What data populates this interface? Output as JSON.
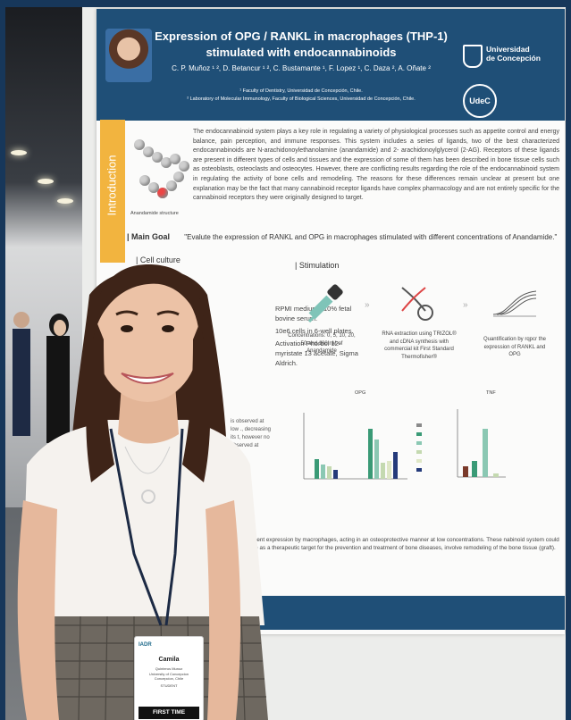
{
  "poster": {
    "title_line1": "Expression of OPG / RANKL in macrophages (THP-1)",
    "title_line2": "stimulated with endocannabinoids",
    "authors": "C. P. Muñoz ¹ ², D. Betancur ¹ ², C. Bustamante ¹, F. Lopez ¹, C. Daza ², A. Oñate ²",
    "affiliation1": "¹ Faculty of Dentistry, Universidad de Concepción, Chile.",
    "affiliation2": "² Laboratory of Molecular Immunology, Faculty of Biological Sciences, Universidad de Concepción, Chile.",
    "logo_university_line1": "Universidad",
    "logo_university_line2": "de Concepción",
    "logo_udec": "UdeC",
    "section_intro": "Introduction",
    "molecule_caption": "Anandamide structure",
    "intro_text": "The endocannabinoid system plays a key role in regulating a variety of physiological processes such as appetite control and energy balance, pain perception, and immune responses. This system includes a series of ligands, two of the best characterized endocannabinoids are N-arachidonoylethanolamine (anandamide) and 2- arachidonoylglycerol (2-AG). Receptors of these ligands are present in different types of cells and tissues and the expression of some of them has been described in bone tissue cells such as osteoblasts, osteoclasts and osteocytes. However, there are conflicting results regarding the role of the endocannabinoid system in regulating the activity of bone cells and remodeling. The reasons for these differences remain unclear at present but one explanation may be the fact that many cannabinoid receptor ligands have complex pharmacology and are not entirely specific for the cannabinoid receptors they were originally designed to target.",
    "main_goal_label": "Main Goal",
    "main_goal_text": "\"Evalute the expression of RANKL and OPG in macrophages stimulated with different concentrations of Anandamide.\"",
    "cell_culture_label": "Cell culture",
    "stimulation_label": "Stimulation",
    "culture_items": [
      "RPMI medium+ 10% fetal bovine serum.",
      "10e6 cells in 6-well plates.",
      "Activation Phorbol 12-myristate 13 acetate, Sigma Aldrich."
    ],
    "step_concentrations": "Concentrations: 0, 5, 10, 20, 50 and 100 nM of Anandamide",
    "step_rna": "RNA extraction using TRIZOL® and cDNA synthesis with commercial kit First Standard Thermofisher®",
    "step_quant": "Quantification by rqpcr the expression of RANKL and OPG",
    "chart_opg_title": "OPG",
    "chart_tnf_title": "TNF",
    "partial_results": "is observed at low ., decreasing its t, however no observed at",
    "conclusion_text": "se dependent expression by macrophages, acting in an osteoprotective manner at low concentrations. These nabinoid system could be of value as a therapeutic target for the prevention and treatment of bone diseases, involve remodeling of the bone tissue (graft)."
  },
  "badge": {
    "logo": "IADR",
    "name": "Camila",
    "sub1": "Quinteros Munoz",
    "sub2": "University of Concepcion",
    "sub3": "Concepcion, Chile",
    "role": "STUDENT",
    "first_time": "FIRST TIME ATTENDEE"
  },
  "colors": {
    "header_blue": "#1f4f77",
    "intro_orange": "#f2b43f",
    "bar_green": "#3a9a76",
    "bar_navy": "#243a7a"
  }
}
